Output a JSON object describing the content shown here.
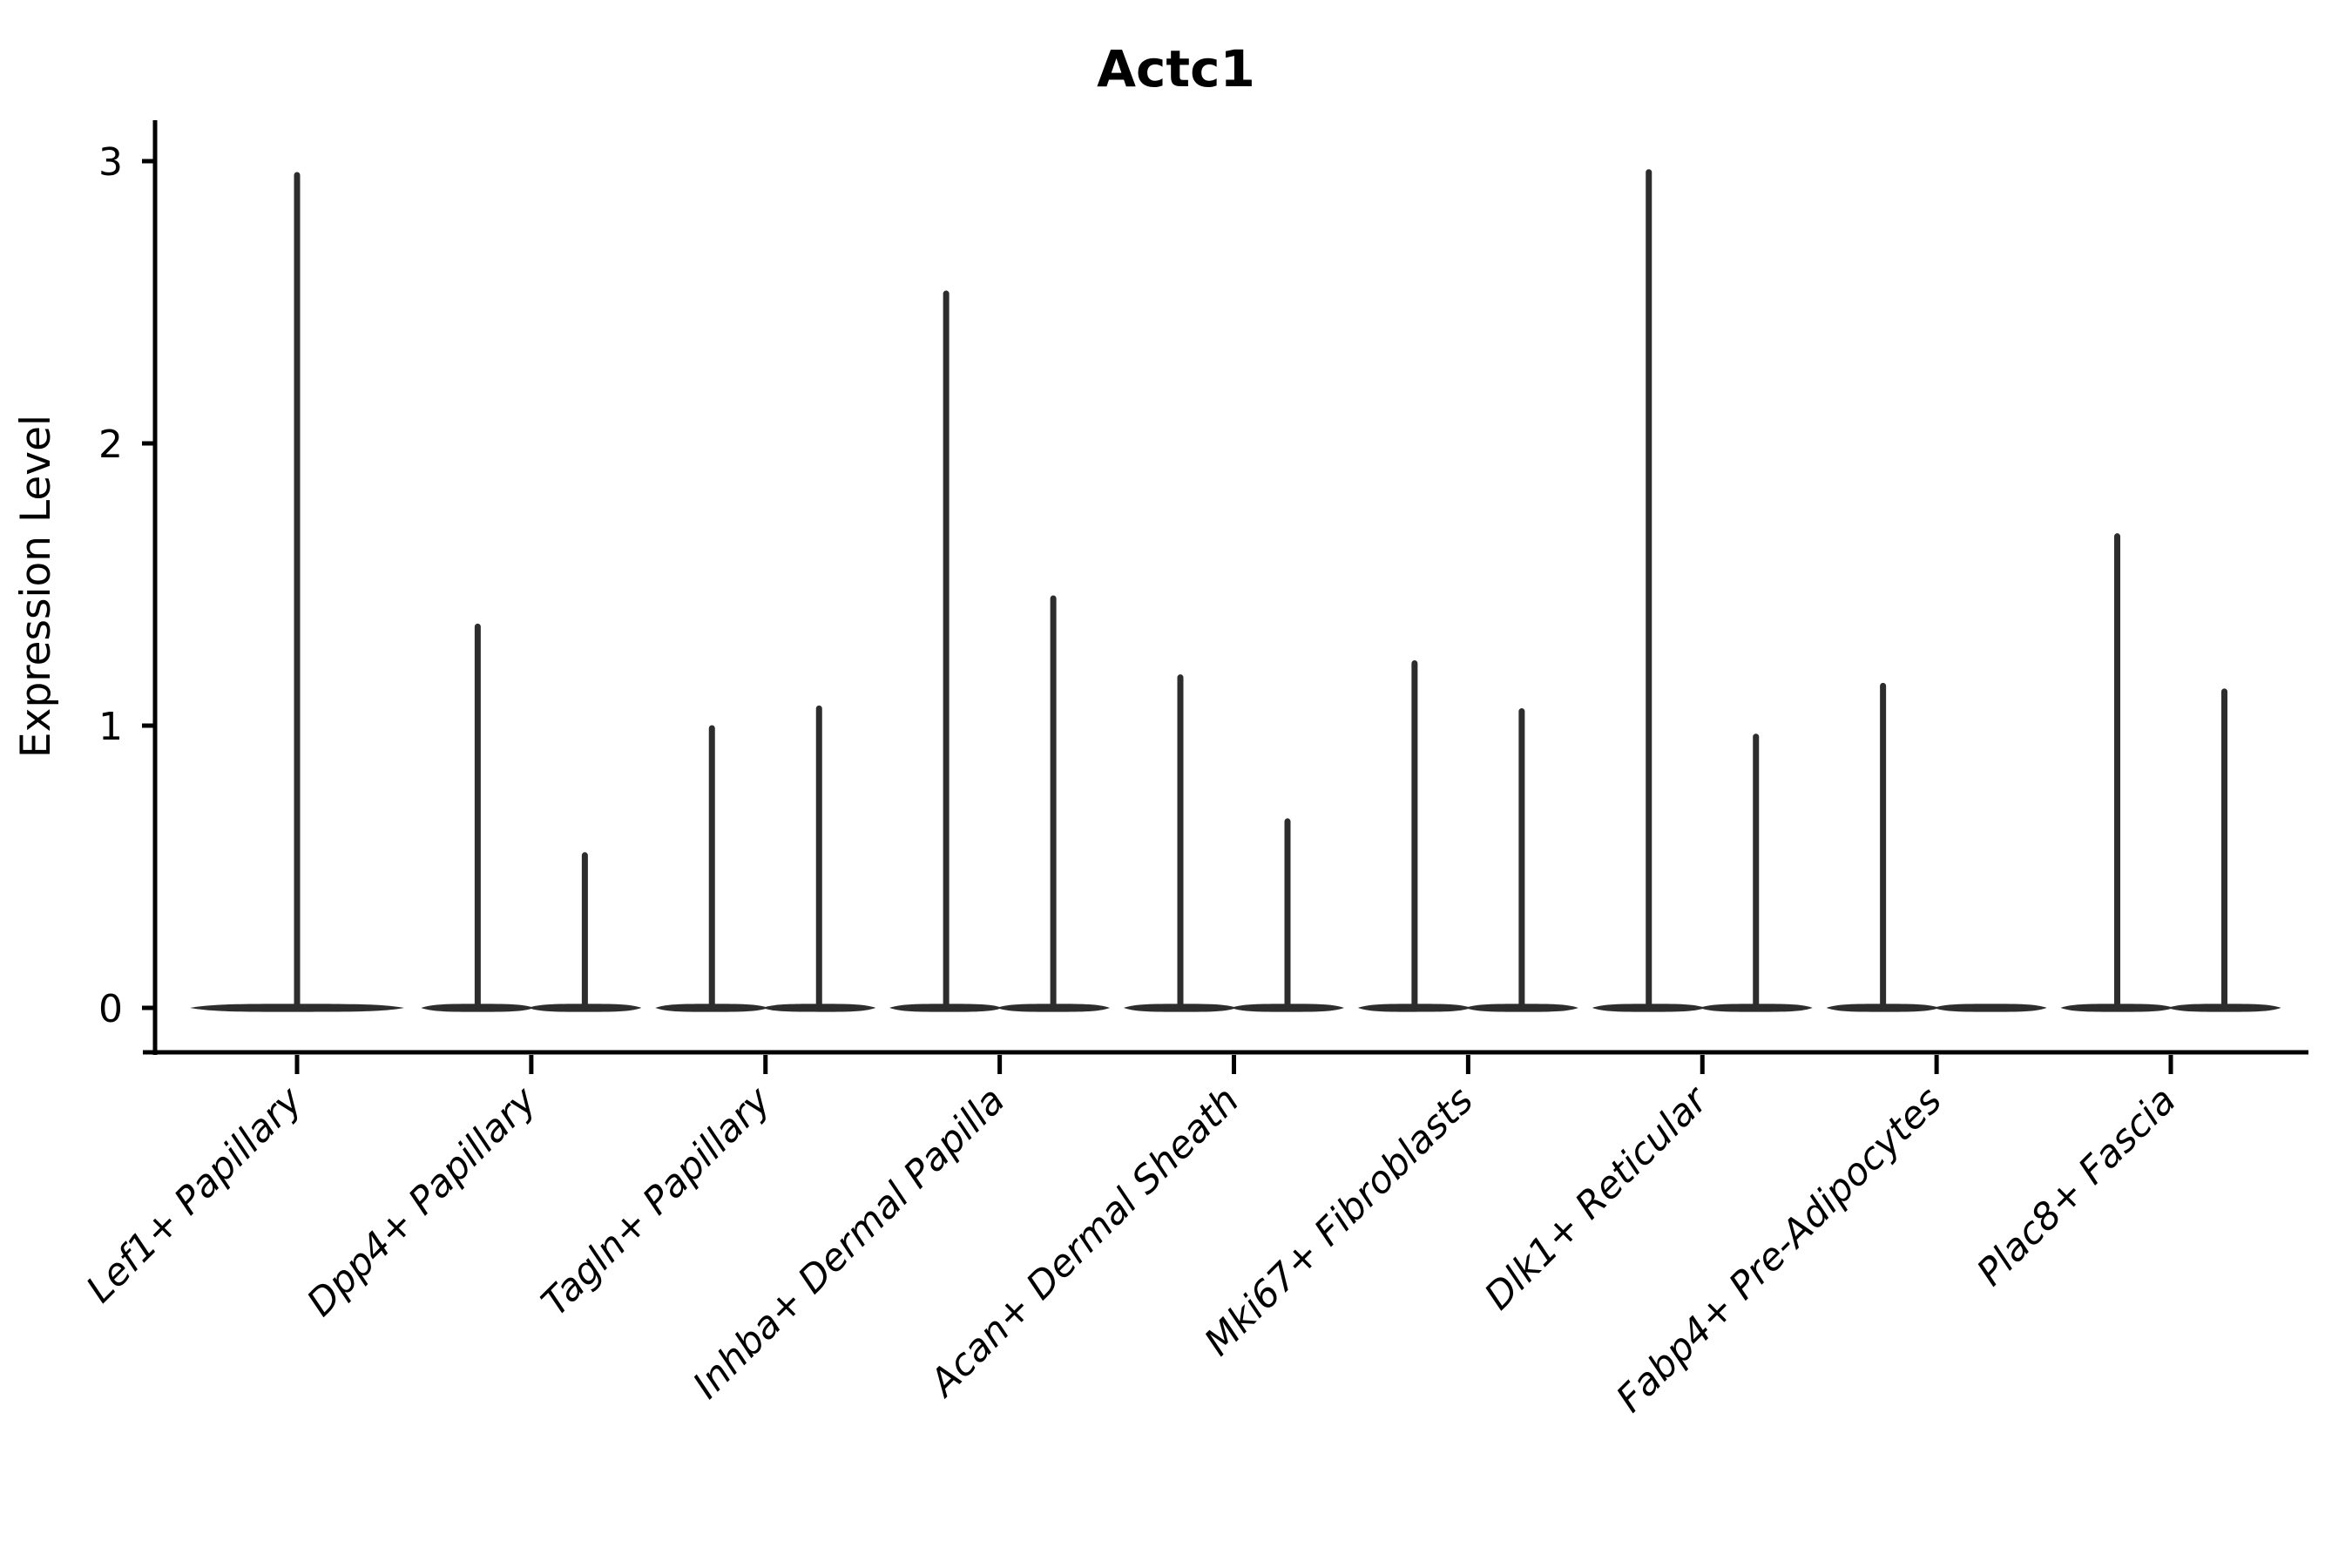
{
  "title": "Actc1",
  "chart_data": {
    "type": "violin",
    "title": "Actc1",
    "xlabel": "",
    "ylabel": "Expression Level",
    "yticks": [
      "0",
      "1",
      "2",
      "3"
    ],
    "ylim": [
      0,
      3.05
    ],
    "grid": false,
    "legend": "none",
    "style_note": "mostly-zero expression: each violin is a flat horizontal pancake at 0 with a thin vertical spike up to its maximum value",
    "violin_color": "#2d2d2e",
    "axis_color": "#000000",
    "categories": [
      "Lef1+ Papillary",
      "Dpp4+ Papillary",
      "Tagln+ Papillary",
      "Inhba+ Dermal Papilla",
      "Acan+ Dermal Sheath",
      "Mki67+ Fibroblasts",
      "Dlk1+ Reticular",
      "Fabp4+ Pre-Adipocytes",
      "Plac8+ Fascia"
    ],
    "violins": [
      {
        "category": "Lef1+ Papillary",
        "spikes": [
          2.96
        ]
      },
      {
        "category": "Dpp4+ Papillary",
        "spikes": [
          1.36,
          0.55
        ]
      },
      {
        "category": "Tagln+ Papillary",
        "spikes": [
          1.0,
          1.07
        ]
      },
      {
        "category": "Inhba+ Dermal Papilla",
        "spikes": [
          2.54,
          1.46
        ]
      },
      {
        "category": "Acan+ Dermal Sheath",
        "spikes": [
          1.18,
          0.67
        ]
      },
      {
        "category": "Mki67+ Fibroblasts",
        "spikes": [
          1.23,
          1.06
        ]
      },
      {
        "category": "Dlk1+ Reticular",
        "spikes": [
          2.97,
          0.97
        ]
      },
      {
        "category": "Fabp4+ Pre-Adipocytes",
        "spikes": [
          1.15,
          0
        ]
      },
      {
        "category": "Plac8+ Fascia",
        "spikes": [
          1.68,
          1.13
        ]
      }
    ]
  }
}
